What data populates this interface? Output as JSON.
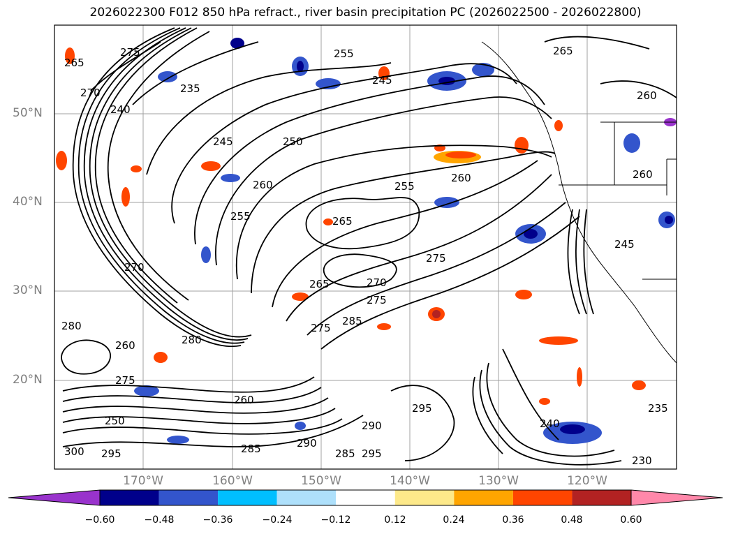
{
  "title": "2026022300 F012 850 hPa refract., river basin precipitation PC (2026022500 - 2026022800)",
  "map": {
    "lat_labels": [
      "50°N",
      "40°N",
      "30°N",
      "20°N"
    ],
    "lon_labels": [
      "170°W",
      "160°W",
      "150°W",
      "140°W",
      "130°W",
      "120°W"
    ],
    "contour_labels": [
      "275",
      "265",
      "270",
      "240",
      "235",
      "255",
      "245",
      "265",
      "260",
      "245",
      "250",
      "260",
      "255",
      "255",
      "260",
      "265",
      "260",
      "245",
      "275",
      "270",
      "275",
      "265",
      "285",
      "275",
      "270",
      "295",
      "290",
      "285",
      "290",
      "295",
      "240",
      "235",
      "285",
      "300",
      "295",
      "280",
      "260",
      "275",
      "250",
      "260",
      "280",
      "230"
    ],
    "colors": {
      "contour": "#000000",
      "grid": "#a0a0a0",
      "coast": "#000000"
    }
  },
  "colorbar": {
    "colors": [
      "#9933cc",
      "#00008b",
      "#3355cc",
      "#00bfff",
      "#aee0fb",
      "#ffffff",
      "#fde98a",
      "#ffa500",
      "#ff4500",
      "#b22222",
      "#ff88aa"
    ],
    "tick_labels": [
      "−0.60",
      "−0.48",
      "−0.36",
      "−0.24",
      "−0.12",
      "0.12",
      "0.24",
      "0.36",
      "0.48",
      "0.60"
    ]
  }
}
